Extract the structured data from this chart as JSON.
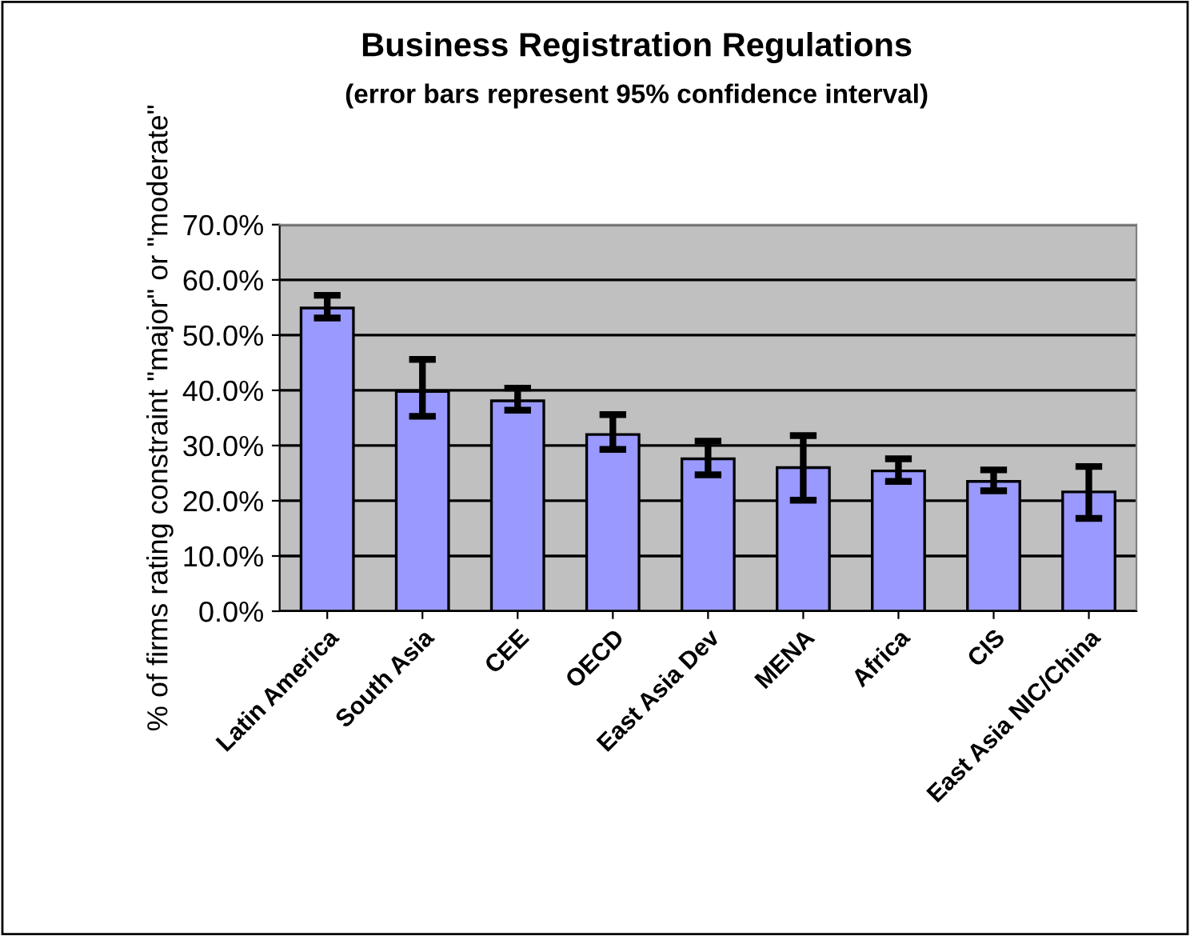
{
  "chart_data": {
    "type": "bar",
    "title": "Business Registration Regulations",
    "subtitle": "(error bars represent 95% confidence interval)",
    "ylabel": "% of firms rating constraint \"major\" or \"moderate\"",
    "categories": [
      "Latin America",
      "South Asia",
      "CEE",
      "OECD",
      "East Asia Dev",
      "MENA",
      "Africa",
      "CIS",
      "East Asia NIC/China"
    ],
    "values": [
      0.549,
      0.398,
      0.381,
      0.32,
      0.276,
      0.26,
      0.254,
      0.235,
      0.216
    ],
    "errors": [
      [
        0.531,
        0.572
      ],
      [
        0.353,
        0.456
      ],
      [
        0.364,
        0.404
      ],
      [
        0.293,
        0.356
      ],
      [
        0.247,
        0.308
      ],
      [
        0.201,
        0.318
      ],
      [
        0.235,
        0.276
      ],
      [
        0.218,
        0.256
      ],
      [
        0.168,
        0.262
      ]
    ],
    "color": "#9999ff",
    "ylim": [
      0,
      0.7
    ],
    "yticks": [
      {
        "value": 0,
        "label": "0.0%"
      },
      {
        "value": 0.1,
        "label": "10.0%"
      },
      {
        "value": 0.2,
        "label": "20.0%"
      },
      {
        "value": 0.3,
        "label": "30.0%"
      },
      {
        "value": 0.4,
        "label": "40.0%"
      },
      {
        "value": 0.5,
        "label": "50.0%"
      },
      {
        "value": 0.6,
        "label": "60.0%"
      },
      {
        "value": 0.7,
        "label": "70.0%"
      }
    ],
    "grid": "y",
    "legend": false
  }
}
